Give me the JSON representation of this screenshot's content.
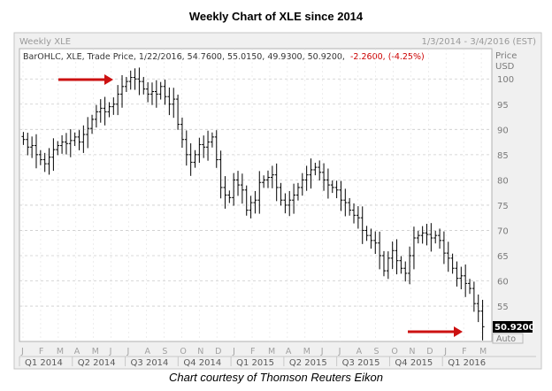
{
  "title": "Weekly Chart of XLE since 2014",
  "caption": "Chart courtesy of Thomson Reuters Eikon",
  "panel": {
    "name": "Weekly XLE",
    "date_range": "1/3/2014 - 3/4/2016 (EST)",
    "legend_prefix": "BarOHLC, XLE, Trade Price, 1/22/2016, 54.7600, 55.0150, 49.9300, 50.9200,",
    "legend_change": "-2.2600, (-4.25%)",
    "price_label": "Price",
    "currency_label": "USD",
    "last_price": "50.9200",
    "auto_label": "Auto",
    "colors": {
      "background": "#ffffff",
      "frame": "#f0f0f0",
      "grid": "#cccccc",
      "bar": "#000000",
      "last_price_box": "#000000",
      "arrow": "#cc1111",
      "change_text": "#cc0000"
    }
  },
  "chart_data": {
    "type": "ohlc",
    "series_name": "XLE",
    "ylim": [
      48,
      106
    ],
    "yticks": [
      55,
      60,
      65,
      70,
      75,
      80,
      85,
      90,
      95,
      100
    ],
    "months": [
      "J",
      "F",
      "M",
      "A",
      "M",
      "J",
      "J",
      "A",
      "S",
      "O",
      "N",
      "D",
      "J",
      "F",
      "M",
      "A",
      "M",
      "J",
      "J",
      "A",
      "S",
      "O",
      "N",
      "D",
      "J",
      "F",
      "M"
    ],
    "quarters": [
      "Q1 2014",
      "Q2 2014",
      "Q3 2014",
      "Q4 2014",
      "Q1 2015",
      "Q2 2015",
      "Q3 2015",
      "Q4 2015",
      "Q1 2016"
    ],
    "close": [
      88.0,
      86.5,
      86.8,
      85.0,
      84.0,
      83.2,
      84.5,
      86.0,
      86.8,
      87.5,
      87.2,
      87.8,
      88.5,
      87.5,
      89.0,
      90.2,
      92.0,
      93.5,
      94.2,
      93.5,
      94.5,
      95.0,
      97.0,
      98.5,
      99.5,
      100.3,
      100.0,
      99.5,
      98.0,
      97.0,
      97.5,
      97.0,
      98.5,
      96.5,
      95.0,
      96.0,
      91.0,
      88.0,
      85.0,
      83.5,
      85.0,
      87.0,
      86.5,
      87.5,
      88.5,
      84.0,
      78.5,
      77.0,
      76.5,
      80.0,
      79.0,
      78.0,
      74.0,
      75.5,
      76.0,
      79.5,
      80.0,
      80.5,
      81.0,
      78.5,
      76.0,
      75.0,
      76.0,
      77.0,
      78.5,
      80.0,
      81.0,
      82.0,
      82.5,
      81.5,
      80.0,
      79.0,
      78.5,
      78.0,
      76.0,
      75.5,
      74.0,
      73.0,
      72.5,
      70.0,
      69.0,
      68.0,
      67.5,
      65.0,
      62.0,
      64.5,
      66.0,
      64.0,
      62.5,
      61.5,
      65.0,
      68.5,
      69.0,
      69.5,
      69.2,
      68.5,
      69.0,
      68.0,
      65.5,
      64.5,
      62.5,
      60.5,
      61.0,
      59.5,
      58.5,
      55.5,
      54.0,
      50.92
    ]
  }
}
